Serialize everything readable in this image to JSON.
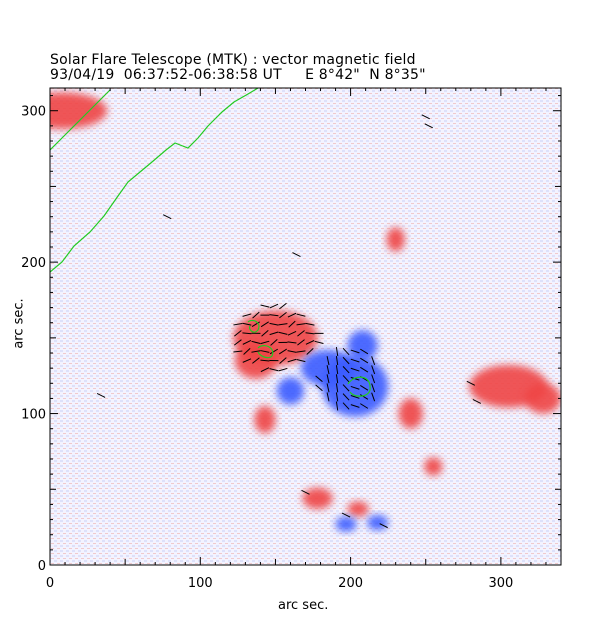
{
  "figure": {
    "title": "Solar Flare Telescope (MTK) : vector magnetic field",
    "subtitle": "93/04/19  06:37:52-06:38:58 UT     E 8°42\"  N 8°35\"",
    "xlabel": "arc sec.",
    "ylabel": "arc sec."
  },
  "axes": {
    "xlim": [
      0,
      340
    ],
    "ylim": [
      0,
      315
    ],
    "x_ticks": [
      "0",
      "100",
      "200",
      "300"
    ],
    "y_ticks": [
      "0",
      "100",
      "200",
      "300"
    ],
    "x_tick_values": [
      0,
      100,
      200,
      300
    ],
    "y_tick_values": [
      0,
      100,
      200,
      300
    ]
  },
  "colors": {
    "positive_polarity": "#ef4444",
    "negative_polarity": "#3b5bff",
    "neutral_line": "#22cc22",
    "vectors": "#000000"
  },
  "regions": {
    "positive": [
      {
        "x": 150,
        "y": 150,
        "rx": 28,
        "ry": 18
      },
      {
        "x": 137,
        "y": 135,
        "rx": 14,
        "ry": 12
      },
      {
        "x": 305,
        "y": 118,
        "rx": 26,
        "ry": 14
      },
      {
        "x": 328,
        "y": 110,
        "rx": 12,
        "ry": 10
      },
      {
        "x": 240,
        "y": 100,
        "rx": 8,
        "ry": 10
      },
      {
        "x": 143,
        "y": 96,
        "rx": 7,
        "ry": 9
      },
      {
        "x": 255,
        "y": 65,
        "rx": 6,
        "ry": 6
      },
      {
        "x": 178,
        "y": 44,
        "rx": 10,
        "ry": 7
      },
      {
        "x": 205,
        "y": 37,
        "rx": 7,
        "ry": 5
      },
      {
        "x": 230,
        "y": 215,
        "rx": 6,
        "ry": 8
      },
      {
        "x": 8,
        "y": 300,
        "rx": 30,
        "ry": 12
      }
    ],
    "negative": [
      {
        "x": 203,
        "y": 118,
        "rx": 22,
        "ry": 20
      },
      {
        "x": 185,
        "y": 130,
        "rx": 18,
        "ry": 12
      },
      {
        "x": 160,
        "y": 115,
        "rx": 9,
        "ry": 9
      },
      {
        "x": 208,
        "y": 145,
        "rx": 10,
        "ry": 10
      },
      {
        "x": 197,
        "y": 27,
        "rx": 7,
        "ry": 5
      },
      {
        "x": 218,
        "y": 28,
        "rx": 7,
        "ry": 5
      }
    ]
  }
}
